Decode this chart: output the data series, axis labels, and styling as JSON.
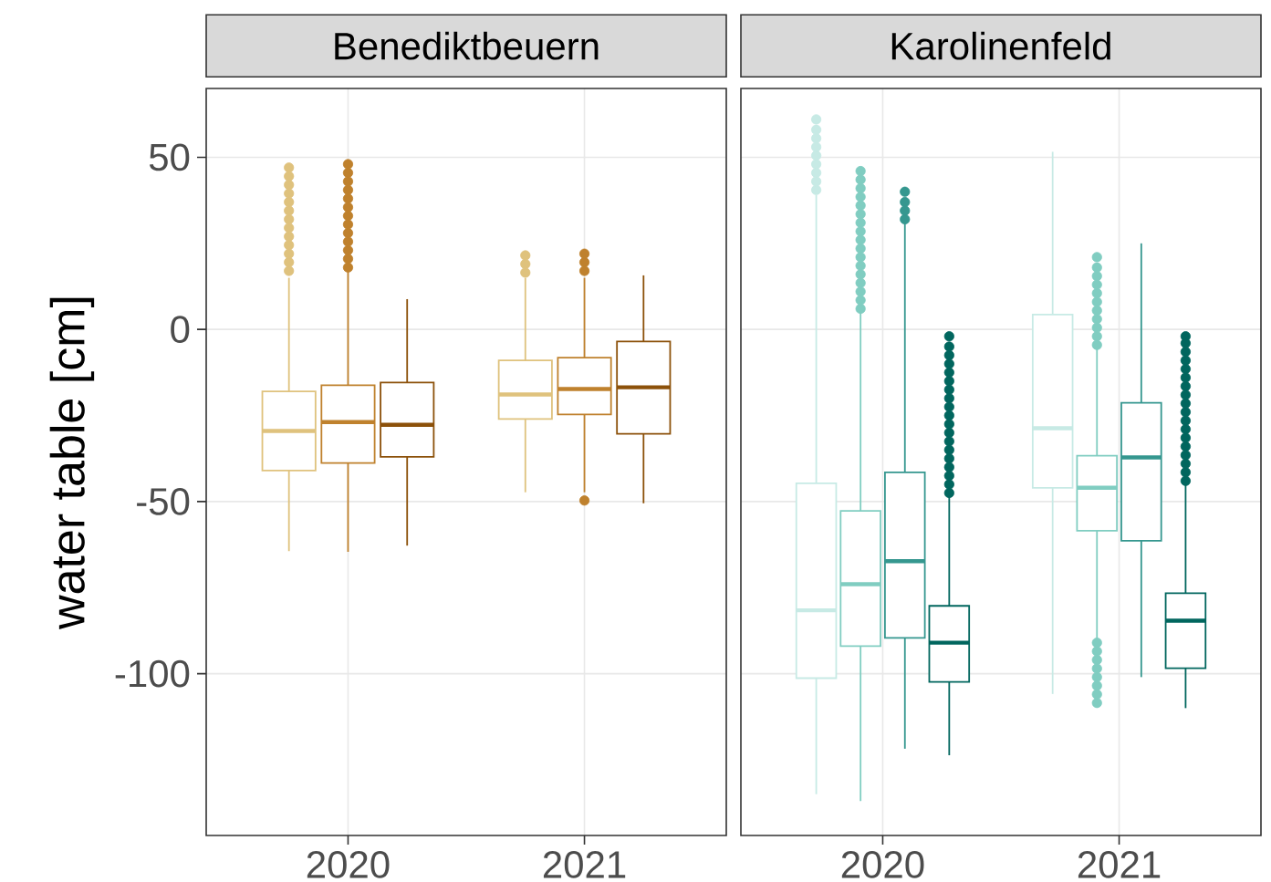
{
  "chart_data": [
    {
      "type": "box",
      "title": "Benediktbeuern",
      "ylabel": "water table [cm]",
      "categories": [
        "2020",
        "2021"
      ],
      "ylim": [
        -147,
        70
      ],
      "yticks": [
        -100,
        -50,
        0,
        50
      ],
      "grid": true,
      "marker": "circle",
      "series": [
        {
          "color": "#dfc27d",
          "boxes": [
            {
              "low": -64.4,
              "q1": -41,
              "median": -29.5,
              "q3": -18,
              "high": 15,
              "outliers": [
                17,
                19.5,
                22,
                24.5,
                27,
                29.5,
                32,
                34.5,
                37,
                39.5,
                42,
                44.5,
                47
              ]
            },
            {
              "low": -47.3,
              "q1": -26,
              "median": -18.9,
              "q3": -9,
              "high": 15,
              "outliers": [
                16.5,
                19,
                21.5
              ]
            }
          ]
        },
        {
          "color": "#bf812d",
          "boxes": [
            {
              "low": -64.6,
              "q1": -38.8,
              "median": -26.9,
              "q3": -16.2,
              "high": 17.3,
              "outliers": [
                18,
                20.5,
                23,
                25.5,
                28,
                30.5,
                33,
                35.5,
                38,
                40.5,
                43,
                45.5,
                48
              ]
            },
            {
              "low": -47.3,
              "q1": -24.7,
              "median": -17.3,
              "q3": -8.2,
              "high": 15,
              "outliers": [
                -49.7,
                17,
                19.5,
                22
              ]
            }
          ]
        },
        {
          "color": "#8c510a",
          "boxes": [
            {
              "low": -62.8,
              "q1": -37,
              "median": -27.7,
              "q3": -15.4,
              "high": 8.8
            },
            {
              "low": -50.5,
              "q1": -30.3,
              "median": -16.8,
              "q3": -3.5,
              "high": 15.7
            }
          ]
        }
      ]
    },
    {
      "type": "box",
      "title": "Karolinenfeld",
      "categories": [
        "2020",
        "2021"
      ],
      "ylim": [
        -147,
        70
      ],
      "yticks": [
        -100,
        -50,
        0,
        50
      ],
      "grid": true,
      "marker": "circle",
      "tick_labels": "x",
      "series": [
        {
          "color": "#c7eae5",
          "boxes": [
            {
              "low": -135,
              "q1": -101.3,
              "median": -81.6,
              "q3": -44.7,
              "high": 39,
              "outliers": [
                40.5,
                43,
                45.5,
                48,
                50.5,
                53,
                55.5,
                58,
                61
              ]
            },
            {
              "low": -105.9,
              "q1": -46,
              "median": -28.7,
              "q3": 4.3,
              "high": 51.6
            }
          ]
        },
        {
          "color": "#80cdc1",
          "boxes": [
            {
              "low": -137,
              "q1": -92,
              "median": -74,
              "q3": -52.7,
              "high": 5,
              "outliers": [
                6,
                8.5,
                11,
                13.5,
                16,
                18.5,
                21,
                23.5,
                26,
                28.5,
                31,
                33.5,
                36,
                38.5,
                41,
                43.5,
                46
              ]
            },
            {
              "low": -89.9,
              "q1": -58.5,
              "median": -46,
              "q3": -36.7,
              "high": -5.3,
              "outliers": [
                -108.5,
                -106,
                -103.5,
                -101,
                -98.5,
                -96,
                -93.5,
                -91,
                -4.5,
                -2,
                0.5,
                3,
                5.5,
                8,
                10.5,
                13,
                15.5,
                18,
                21
              ]
            }
          ]
        },
        {
          "color": "#35978f",
          "boxes": [
            {
              "low": -121.8,
              "q1": -89.6,
              "median": -67.3,
              "q3": -41.5,
              "high": 30.9,
              "outliers": [
                32,
                34.5,
                37,
                40
              ]
            },
            {
              "low": -101,
              "q1": -61.4,
              "median": -37.2,
              "q3": -21.3,
              "high": 25
            }
          ]
        },
        {
          "color": "#01665e",
          "boxes": [
            {
              "low": -123.7,
              "q1": -102.4,
              "median": -91,
              "q3": -80.3,
              "high": -48.7,
              "outliers": [
                -47.5,
                -45,
                -42.5,
                -40,
                -37.5,
                -35,
                -32.5,
                -30,
                -27.5,
                -25,
                -22.5,
                -20,
                -17.5,
                -15,
                -12.5,
                -10,
                -7.5,
                -5,
                -2
              ]
            },
            {
              "low": -110,
              "q1": -98.4,
              "median": -84.6,
              "q3": -76.6,
              "high": -44.7,
              "outliers": [
                -44,
                -41.5,
                -39,
                -36.5,
                -34,
                -31.5,
                -29,
                -26.5,
                -24,
                -21.5,
                -19,
                -16.5,
                -14,
                -11.5,
                -9,
                -6.5,
                -4,
                -2
              ]
            }
          ]
        }
      ]
    }
  ]
}
